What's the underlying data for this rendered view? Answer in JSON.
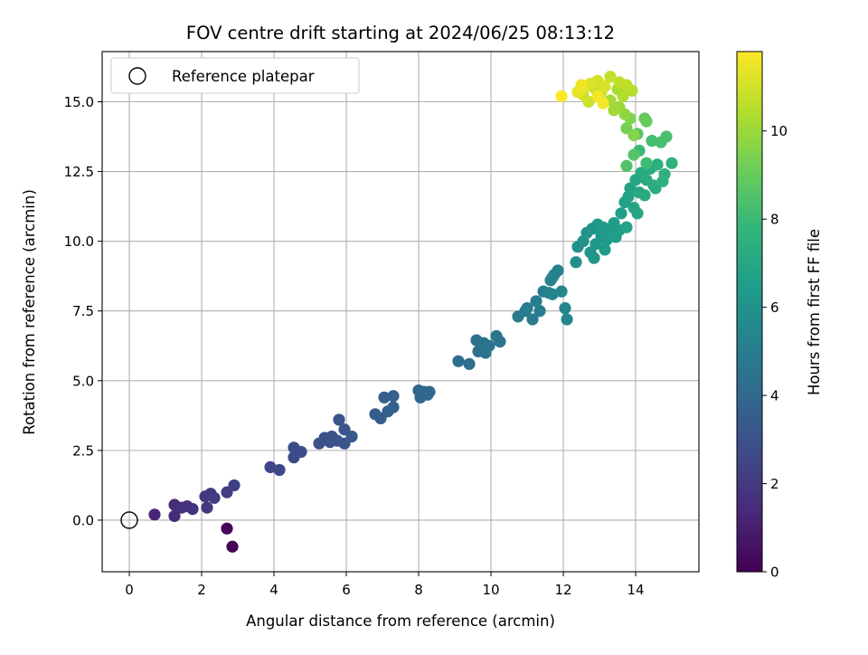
{
  "chart_data": {
    "type": "scatter",
    "title": "FOV centre drift starting at 2024/06/25 08:13:12",
    "xlabel": "Angular distance from reference (arcmin)",
    "ylabel": "Rotation from reference (arcmin)",
    "xlim": [
      -0.75,
      15.75
    ],
    "ylim": [
      -1.85,
      16.8
    ],
    "xticks": [
      "0",
      "2",
      "4",
      "6",
      "8",
      "10",
      "12",
      "14"
    ],
    "yticks": [
      "0.0",
      "2.5",
      "5.0",
      "7.5",
      "10.0",
      "12.5",
      "15.0"
    ],
    "grid": true,
    "legend": {
      "position": "top-left",
      "entries": [
        "Reference platepar"
      ]
    },
    "colorbar": {
      "label": "Hours from first FF file",
      "range": [
        0,
        11.8
      ],
      "ticks": [
        "0",
        "2",
        "4",
        "6",
        "8",
        "10"
      ],
      "colormap": [
        "#440154",
        "#482878",
        "#3e4989",
        "#31688e",
        "#26828e",
        "#1f9e89",
        "#35b779",
        "#6ece58",
        "#b5de2b",
        "#fde725"
      ]
    },
    "reference_point": {
      "x": 0,
      "y": 0
    },
    "point_colors": {
      "reference_edge": "#000000",
      "axes": "#000000",
      "grid": "#b0b0b0"
    },
    "points": [
      [
        2.7,
        -0.3,
        0.2
      ],
      [
        2.85,
        -0.95,
        0.1
      ],
      [
        0.7,
        0.2,
        1.2
      ],
      [
        1.25,
        0.15,
        1.4
      ],
      [
        1.25,
        0.55,
        1.5
      ],
      [
        1.45,
        0.45,
        1.6
      ],
      [
        1.6,
        0.5,
        1.7
      ],
      [
        1.75,
        0.4,
        1.8
      ],
      [
        2.15,
        0.45,
        1.9
      ],
      [
        2.1,
        0.85,
        2.0
      ],
      [
        2.25,
        0.95,
        2.0
      ],
      [
        2.35,
        0.8,
        2.1
      ],
      [
        2.7,
        1.0,
        2.2
      ],
      [
        2.9,
        1.25,
        2.3
      ],
      [
        3.9,
        1.9,
        2.5
      ],
      [
        4.15,
        1.8,
        2.6
      ],
      [
        4.55,
        2.25,
        2.7
      ],
      [
        4.55,
        2.6,
        2.7
      ],
      [
        4.75,
        2.45,
        2.8
      ],
      [
        5.25,
        2.75,
        2.9
      ],
      [
        5.4,
        2.95,
        2.95
      ],
      [
        5.55,
        2.8,
        3.0
      ],
      [
        5.6,
        3.0,
        3.0
      ],
      [
        5.75,
        2.85,
        3.05
      ],
      [
        5.8,
        3.6,
        3.1
      ],
      [
        5.95,
        2.75,
        3.1
      ],
      [
        5.95,
        3.25,
        3.15
      ],
      [
        6.15,
        3.0,
        3.2
      ],
      [
        6.8,
        3.8,
        3.4
      ],
      [
        6.95,
        3.65,
        3.45
      ],
      [
        7.05,
        4.4,
        3.5
      ],
      [
        7.15,
        3.9,
        3.55
      ],
      [
        7.3,
        4.45,
        3.6
      ],
      [
        7.3,
        4.05,
        3.6
      ],
      [
        8.0,
        4.65,
        3.8
      ],
      [
        8.05,
        4.4,
        3.85
      ],
      [
        8.15,
        4.6,
        3.9
      ],
      [
        8.25,
        4.5,
        3.9
      ],
      [
        8.3,
        4.6,
        3.95
      ],
      [
        9.1,
        5.7,
        4.2
      ],
      [
        9.4,
        5.6,
        4.3
      ],
      [
        9.6,
        6.45,
        4.4
      ],
      [
        9.65,
        6.05,
        4.4
      ],
      [
        9.8,
        6.35,
        4.5
      ],
      [
        9.85,
        6.0,
        4.5
      ],
      [
        9.95,
        6.25,
        4.55
      ],
      [
        10.15,
        6.6,
        4.6
      ],
      [
        10.25,
        6.4,
        4.65
      ],
      [
        10.75,
        7.3,
        4.8
      ],
      [
        10.95,
        7.5,
        4.85
      ],
      [
        11.0,
        7.6,
        4.9
      ],
      [
        11.15,
        7.2,
        4.9
      ],
      [
        11.25,
        7.85,
        5.0
      ],
      [
        11.35,
        7.5,
        5.0
      ],
      [
        11.45,
        8.2,
        5.1
      ],
      [
        11.6,
        8.15,
        5.15
      ],
      [
        11.65,
        8.6,
        5.2
      ],
      [
        11.7,
        8.7,
        5.25
      ],
      [
        11.75,
        8.8,
        5.3
      ],
      [
        11.85,
        8.95,
        5.3
      ],
      [
        11.7,
        8.1,
        5.35
      ],
      [
        11.95,
        8.2,
        5.4
      ],
      [
        12.05,
        7.6,
        5.45
      ],
      [
        12.1,
        7.2,
        5.5
      ],
      [
        12.35,
        9.25,
        5.8
      ],
      [
        12.4,
        9.8,
        5.9
      ],
      [
        12.55,
        10.0,
        6.0
      ],
      [
        12.65,
        10.3,
        6.05
      ],
      [
        12.75,
        9.6,
        6.1
      ],
      [
        12.8,
        10.45,
        6.15
      ],
      [
        12.85,
        9.4,
        6.2
      ],
      [
        12.9,
        9.9,
        6.2
      ],
      [
        12.95,
        10.6,
        6.25
      ],
      [
        13.05,
        10.2,
        6.3
      ],
      [
        13.1,
        10.5,
        6.35
      ],
      [
        13.15,
        9.7,
        6.4
      ],
      [
        13.2,
        10.05,
        6.4
      ],
      [
        13.3,
        10.4,
        6.45
      ],
      [
        13.4,
        10.65,
        6.5
      ],
      [
        13.45,
        10.15,
        6.55
      ],
      [
        13.55,
        10.4,
        6.6
      ],
      [
        13.6,
        11.0,
        6.65
      ],
      [
        13.7,
        11.4,
        6.7
      ],
      [
        13.75,
        10.5,
        6.75
      ],
      [
        13.8,
        11.6,
        6.8
      ],
      [
        13.85,
        11.9,
        6.85
      ],
      [
        13.95,
        11.2,
        6.9
      ],
      [
        14.0,
        12.2,
        6.95
      ],
      [
        14.05,
        11.0,
        7.0
      ],
      [
        14.1,
        11.75,
        7.05
      ],
      [
        14.15,
        12.45,
        7.1
      ],
      [
        14.25,
        11.65,
        7.15
      ],
      [
        14.3,
        12.2,
        7.2
      ],
      [
        14.4,
        12.6,
        7.25
      ],
      [
        14.5,
        12.0,
        7.3
      ],
      [
        14.55,
        11.9,
        7.35
      ],
      [
        14.6,
        12.75,
        7.4
      ],
      [
        14.75,
        12.15,
        7.45
      ],
      [
        14.8,
        12.4,
        7.5
      ],
      [
        15.0,
        12.8,
        7.6
      ],
      [
        14.1,
        13.25,
        8.0
      ],
      [
        14.3,
        12.8,
        8.1
      ],
      [
        14.45,
        13.6,
        8.2
      ],
      [
        14.7,
        13.55,
        8.3
      ],
      [
        14.85,
        13.75,
        8.35
      ],
      [
        13.75,
        12.7,
        8.5
      ],
      [
        13.95,
        13.1,
        8.6
      ],
      [
        14.05,
        13.85,
        8.7
      ],
      [
        14.25,
        14.4,
        8.9
      ],
      [
        14.3,
        14.3,
        9.0
      ],
      [
        13.75,
        14.05,
        9.3
      ],
      [
        13.85,
        14.4,
        9.5
      ],
      [
        13.95,
        13.8,
        9.6
      ],
      [
        13.7,
        14.55,
        9.8
      ],
      [
        13.55,
        14.8,
        10.0
      ],
      [
        13.4,
        14.7,
        10.1
      ],
      [
        13.3,
        15.05,
        10.2
      ],
      [
        13.5,
        15.45,
        10.3
      ],
      [
        13.65,
        15.2,
        10.4
      ],
      [
        13.9,
        15.4,
        10.5
      ],
      [
        13.75,
        15.6,
        10.6
      ],
      [
        13.55,
        15.7,
        10.7
      ],
      [
        13.3,
        15.9,
        10.75
      ],
      [
        13.05,
        15.35,
        10.8
      ],
      [
        12.85,
        15.5,
        10.85
      ],
      [
        12.7,
        15.0,
        10.9
      ],
      [
        12.55,
        15.25,
        10.95
      ],
      [
        12.95,
        15.75,
        11.0
      ],
      [
        13.15,
        15.55,
        11.1
      ],
      [
        12.75,
        15.65,
        11.2
      ],
      [
        12.55,
        15.5,
        11.3
      ],
      [
        12.4,
        15.35,
        11.4
      ],
      [
        12.5,
        15.6,
        11.5
      ],
      [
        12.95,
        15.2,
        11.6
      ],
      [
        13.1,
        14.95,
        11.65
      ],
      [
        11.95,
        15.2,
        11.75
      ]
    ]
  }
}
